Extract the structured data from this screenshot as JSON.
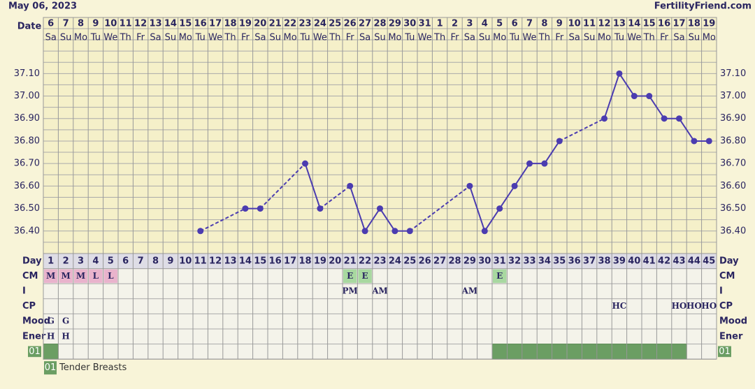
{
  "chart_data": {
    "type": "line",
    "title": "May 06, 2023",
    "source": "FertilityFriend.com",
    "date_label": "Date",
    "day_label": "Day",
    "categories": [
      "6",
      "7",
      "8",
      "9",
      "10",
      "11",
      "12",
      "13",
      "14",
      "15",
      "16",
      "17",
      "18",
      "19",
      "20",
      "21",
      "22",
      "23",
      "24",
      "25",
      "26",
      "27",
      "28",
      "29",
      "30",
      "31",
      "1",
      "2",
      "3",
      "4",
      "5",
      "6",
      "7",
      "8",
      "9",
      "10",
      "11",
      "12",
      "13",
      "14",
      "15",
      "16",
      "17",
      "18",
      "19"
    ],
    "weekdays": [
      "Sa",
      "Su",
      "Mo",
      "Tu",
      "We",
      "Th",
      "Fr",
      "Sa",
      "Su",
      "Mo",
      "Tu",
      "We",
      "Th",
      "Fr",
      "Sa",
      "Su",
      "Mo",
      "Tu",
      "We",
      "Th",
      "Fr",
      "Sa",
      "Su",
      "Mo",
      "Tu",
      "We",
      "Th",
      "Fr",
      "Sa",
      "Su",
      "Mo",
      "Tu",
      "We",
      "Th",
      "Fr",
      "Sa",
      "Su",
      "Mo",
      "Tu",
      "We",
      "Th",
      "Fr",
      "Sa",
      "Su",
      "Mo"
    ],
    "days": [
      1,
      2,
      3,
      4,
      5,
      6,
      7,
      8,
      9,
      10,
      11,
      12,
      13,
      14,
      15,
      16,
      17,
      18,
      19,
      20,
      21,
      22,
      23,
      24,
      25,
      26,
      27,
      28,
      29,
      30,
      31,
      32,
      33,
      34,
      35,
      36,
      37,
      38,
      39,
      40,
      41,
      42,
      43,
      44,
      45
    ],
    "values": [
      null,
      null,
      null,
      null,
      null,
      null,
      null,
      null,
      null,
      null,
      36.4,
      null,
      null,
      36.5,
      36.5,
      null,
      null,
      36.7,
      36.5,
      null,
      36.6,
      36.4,
      36.5,
      36.4,
      36.4,
      null,
      null,
      null,
      36.6,
      36.4,
      36.5,
      36.6,
      36.7,
      36.7,
      36.8,
      null,
      null,
      36.9,
      37.1,
      37.0,
      37.0,
      36.9,
      36.9,
      36.8,
      36.8
    ],
    "color": "#4b3cb0",
    "ylim": [
      36.3,
      37.25
    ],
    "yticks": [
      {
        "value": 36.4,
        "label": "36.40"
      },
      {
        "value": 36.5,
        "label": "36.50"
      },
      {
        "value": 36.6,
        "label": "36.60"
      },
      {
        "value": 36.7,
        "label": "36.70"
      },
      {
        "value": 36.8,
        "label": "36.80"
      },
      {
        "value": 36.9,
        "label": "36.90"
      },
      {
        "value": 37.0,
        "label": "37.00"
      },
      {
        "value": 37.1,
        "label": "37.10"
      }
    ],
    "minor_grid": [
      36.3,
      36.35,
      36.45,
      36.55,
      36.65,
      36.75,
      36.85,
      36.95,
      37.05,
      37.15,
      37.2,
      37.25
    ],
    "grid": true,
    "rows": [
      {
        "label": "CM",
        "cells": [
          "M",
          "M",
          "M",
          "L",
          "L",
          null,
          null,
          null,
          null,
          null,
          null,
          null,
          null,
          null,
          null,
          null,
          null,
          null,
          null,
          null,
          "E",
          "E",
          null,
          null,
          null,
          null,
          null,
          null,
          null,
          null,
          "E",
          null,
          null,
          null,
          null,
          null,
          null,
          null,
          null,
          null,
          null,
          null,
          null,
          null,
          null
        ],
        "fills": [
          "#e9b3cc",
          "#e9b3cc",
          "#e9b3cc",
          "#e9b3cc",
          "#e9b3cc",
          null,
          null,
          null,
          null,
          null,
          null,
          null,
          null,
          null,
          null,
          null,
          null,
          null,
          null,
          null,
          "#a8d8a0",
          "#a8d8a0",
          null,
          null,
          null,
          null,
          null,
          null,
          null,
          null,
          "#a8d8a0",
          null,
          null,
          null,
          null,
          null,
          null,
          null,
          null,
          null,
          null,
          null,
          null,
          null,
          null
        ]
      },
      {
        "label": "I",
        "cells": [
          null,
          null,
          null,
          null,
          null,
          null,
          null,
          null,
          null,
          null,
          null,
          null,
          null,
          null,
          null,
          null,
          null,
          null,
          null,
          null,
          "PM",
          null,
          "AM",
          null,
          null,
          null,
          null,
          null,
          "AM",
          null,
          null,
          null,
          null,
          null,
          null,
          null,
          null,
          null,
          null,
          null,
          null,
          null,
          null,
          null,
          null
        ]
      },
      {
        "label": "CP",
        "cells": [
          null,
          null,
          null,
          null,
          null,
          null,
          null,
          null,
          null,
          null,
          null,
          null,
          null,
          null,
          null,
          null,
          null,
          null,
          null,
          null,
          null,
          null,
          null,
          null,
          null,
          null,
          null,
          null,
          null,
          null,
          null,
          null,
          null,
          null,
          null,
          null,
          null,
          null,
          "HC",
          null,
          null,
          null,
          "HO",
          "HO",
          "HO"
        ]
      },
      {
        "label": "Mood",
        "cells": [
          "G",
          "G",
          null,
          null,
          null,
          null,
          null,
          null,
          null,
          null,
          null,
          null,
          null,
          null,
          null,
          null,
          null,
          null,
          null,
          null,
          null,
          null,
          null,
          null,
          null,
          null,
          null,
          null,
          null,
          null,
          null,
          null,
          null,
          null,
          null,
          null,
          null,
          null,
          null,
          null,
          null,
          null,
          null,
          null,
          null
        ]
      },
      {
        "label": "Ener",
        "cells": [
          "H",
          "H",
          null,
          null,
          null,
          null,
          null,
          null,
          null,
          null,
          null,
          null,
          null,
          null,
          null,
          null,
          null,
          null,
          null,
          null,
          null,
          null,
          null,
          null,
          null,
          null,
          null,
          null,
          null,
          null,
          null,
          null,
          null,
          null,
          null,
          null,
          null,
          null,
          null,
          null,
          null,
          null,
          null,
          null,
          null
        ]
      }
    ],
    "symptoms": [
      {
        "code": "01",
        "name": "Tender Breasts",
        "color": "#6b9e63",
        "present": [
          true,
          false,
          false,
          false,
          false,
          false,
          false,
          false,
          false,
          false,
          false,
          false,
          false,
          false,
          false,
          false,
          false,
          false,
          false,
          false,
          false,
          false,
          false,
          false,
          false,
          false,
          false,
          false,
          false,
          false,
          true,
          true,
          true,
          true,
          true,
          true,
          true,
          true,
          true,
          true,
          true,
          true,
          true,
          false,
          false
        ]
      }
    ]
  }
}
